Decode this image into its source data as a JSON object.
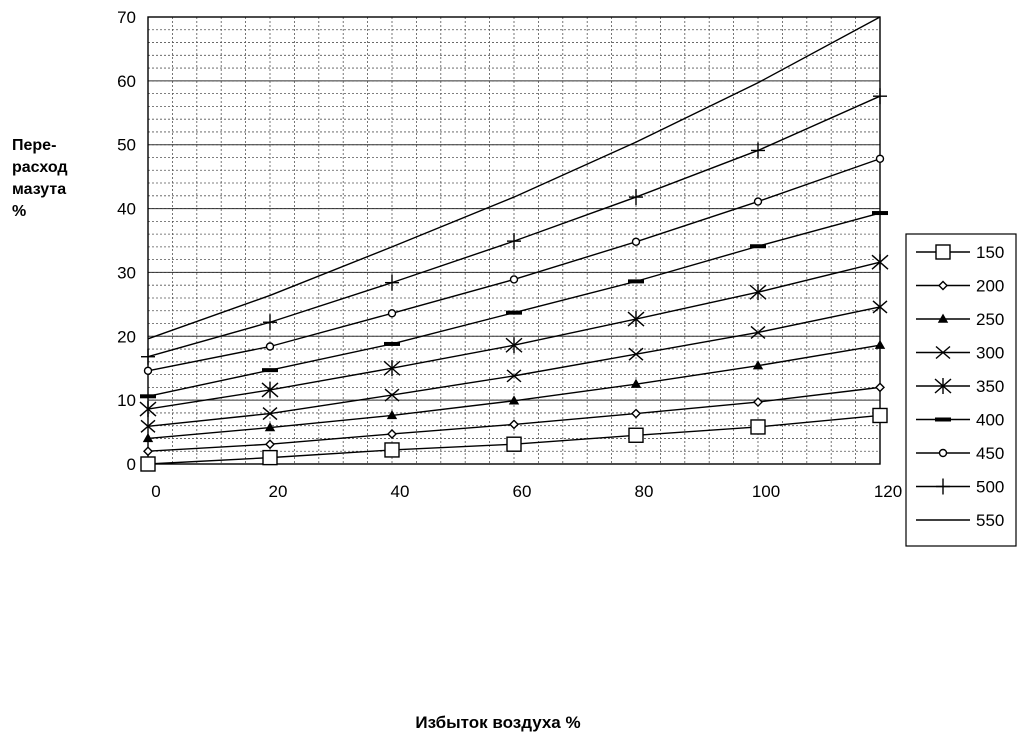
{
  "chart_data": {
    "type": "line",
    "title": "",
    "xlabel": "Избыток воздуха %",
    "ylabel_lines": [
      "Пере-",
      "расход",
      "мазута",
      "%"
    ],
    "x": [
      0,
      20,
      40,
      60,
      80,
      100,
      120
    ],
    "x_ticks": [
      "0",
      "20",
      "40",
      "60",
      "80",
      "100",
      "120"
    ],
    "y_ticks": [
      "0",
      "10",
      "20",
      "30",
      "40",
      "50",
      "60",
      "70"
    ],
    "xlim": [
      0,
      120
    ],
    "ylim": [
      0,
      70
    ],
    "grid": true,
    "legend_position": "right",
    "series": [
      {
        "name": "150",
        "marker": "square",
        "values": [
          0,
          1,
          2.2,
          3.1,
          4.5,
          5.8,
          7.6
        ]
      },
      {
        "name": "200",
        "marker": "diamond",
        "values": [
          2,
          3.1,
          4.7,
          6.2,
          7.9,
          9.7,
          12
        ]
      },
      {
        "name": "250",
        "marker": "triangle",
        "values": [
          4,
          5.7,
          7.6,
          9.9,
          12.5,
          15.4,
          18.6
        ]
      },
      {
        "name": "300",
        "marker": "x",
        "values": [
          5.9,
          7.9,
          10.8,
          13.8,
          17.2,
          20.6,
          24.6
        ]
      },
      {
        "name": "350",
        "marker": "star",
        "values": [
          8.6,
          11.6,
          15,
          18.6,
          22.7,
          26.9,
          31.6
        ]
      },
      {
        "name": "400",
        "marker": "dash",
        "values": [
          10.6,
          14.7,
          18.8,
          23.7,
          28.6,
          34.1,
          39.3
        ]
      },
      {
        "name": "450",
        "marker": "circle",
        "values": [
          14.6,
          18.4,
          23.6,
          28.9,
          34.8,
          41.1,
          47.8
        ]
      },
      {
        "name": "500",
        "marker": "plus",
        "values": [
          16.8,
          22.2,
          28.4,
          34.9,
          41.8,
          49.1,
          57.6
        ]
      },
      {
        "name": "550",
        "marker": "none",
        "values": [
          19.6,
          26.4,
          34,
          41.8,
          50.4,
          59.7,
          70
        ]
      }
    ]
  }
}
